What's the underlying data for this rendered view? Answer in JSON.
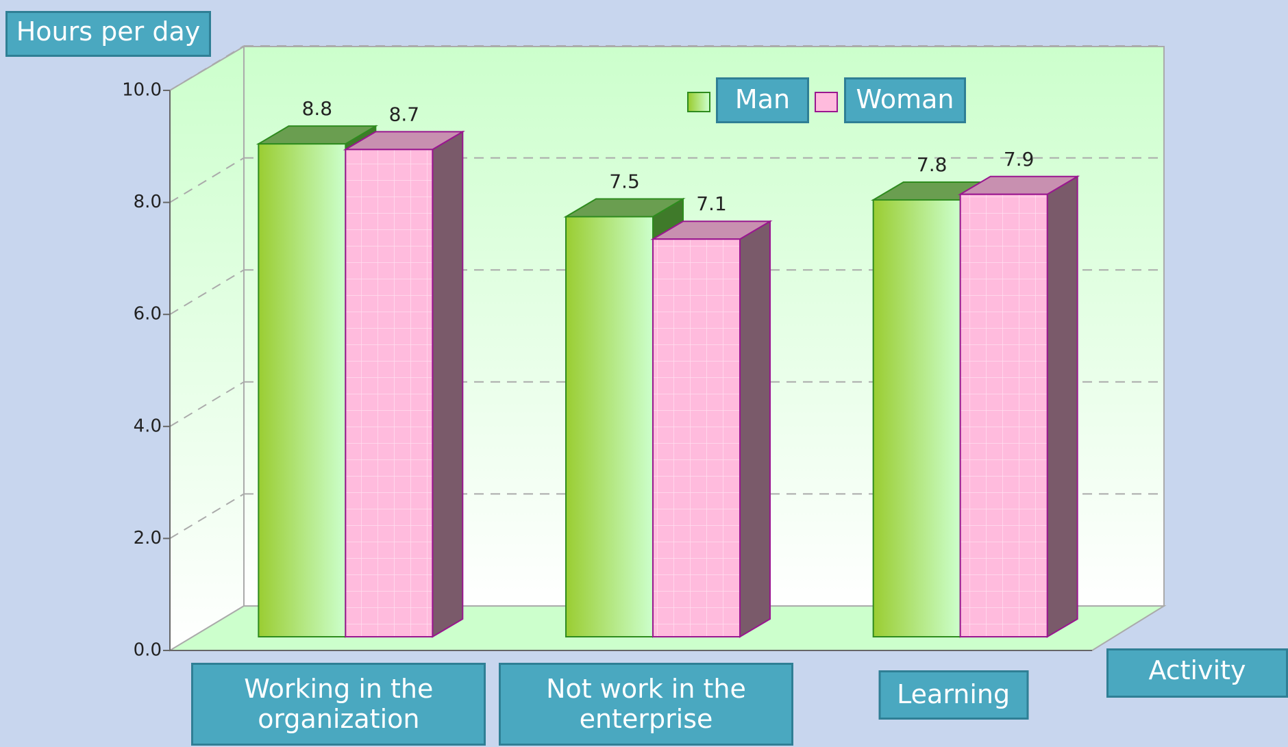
{
  "chart_data": {
    "type": "bar3d",
    "title": "Hours per day",
    "x_label": "Activity",
    "categories": [
      "Working in the organization",
      "Not work in the enterprise",
      "Learning"
    ],
    "series": [
      {
        "name": "Man",
        "color": "#9acd32",
        "values": [
          8.8,
          7.5,
          7.8
        ]
      },
      {
        "name": "Woman",
        "color": "#ffbbdd",
        "values": [
          8.7,
          7.1,
          7.9
        ]
      }
    ],
    "ylim": [
      0,
      10
    ],
    "yticks": [
      {
        "value": 0,
        "label": "0.0"
      },
      {
        "value": 2,
        "label": "2.0"
      },
      {
        "value": 4,
        "label": "4.0"
      },
      {
        "value": 6,
        "label": "6.0"
      },
      {
        "value": 8,
        "label": "8.0"
      },
      {
        "value": 10,
        "label": "10.0"
      }
    ],
    "grid": true,
    "legend": "top"
  }
}
